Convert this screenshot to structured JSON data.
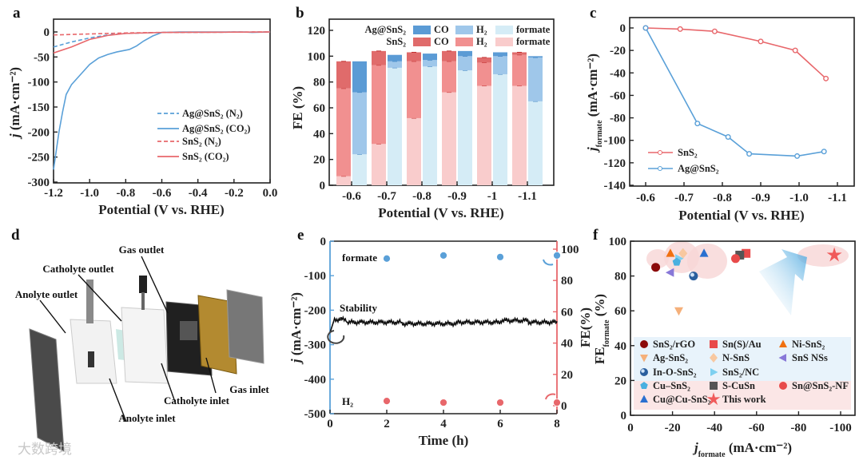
{
  "panels": {
    "a": "a",
    "b": "b",
    "c": "c",
    "d": "d",
    "e": "e",
    "f": "f"
  },
  "watermark": "大数跨境",
  "cell_diagram": {
    "labels": [
      "Gas outlet",
      "Catholyte outlet",
      "Anolyte outlet",
      "Gas inlet",
      "Catholyte inlet",
      "Anolyte inlet"
    ]
  },
  "colors": {
    "sns2": "#e8676b",
    "ag": "#5aa0d8",
    "sns2_formate": "#f9cccc",
    "sns2_h2": "#f19090",
    "sns2_co": "#e06b6b",
    "ag_formate": "#d5ecf6",
    "ag_h2": "#9fc7ea",
    "ag_co": "#5b9bd5"
  },
  "chart_data": [
    {
      "type": "line",
      "panel": "a",
      "xlabel": "Potential (V vs. RHE)",
      "ylabel_symbol": "j",
      "ylabel_unit": " (mA·cm⁻²)",
      "xlim": [
        -1.2,
        0.0
      ],
      "ylim": [
        -300,
        0
      ],
      "x_ticks": [
        "-1.2",
        "-1.0",
        "-0.8",
        "-0.6",
        "-0.4",
        "-0.2",
        "0.0"
      ],
      "y_ticks": [
        "0",
        "-50",
        "-100",
        "-150",
        "-200",
        "-250",
        "-300"
      ],
      "series": [
        {
          "name": "Ag@SnS₂ (N₂)",
          "style": "dashed",
          "color": "#5aa0d8",
          "x": [
            -1.2,
            -1.1,
            -1.0,
            -0.9,
            -0.8,
            -0.6,
            0
          ],
          "y": [
            -30,
            -20,
            -12,
            -6,
            -3,
            -1,
            0
          ]
        },
        {
          "name": "Ag@SnS₂ (CO₂)",
          "style": "solid",
          "color": "#5aa0d8",
          "x": [
            -1.2,
            -1.19,
            -1.17,
            -1.15,
            -1.13,
            -1.1,
            -1.05,
            -1.0,
            -0.95,
            -0.9,
            -0.85,
            -0.78,
            -0.74,
            -0.7,
            -0.65,
            -0.6,
            -0.5,
            -0.15,
            -0.1,
            0
          ],
          "y": [
            -275,
            -250,
            -200,
            -160,
            -125,
            -105,
            -85,
            -65,
            -52,
            -45,
            -40,
            -35,
            -28,
            -18,
            -8,
            -1,
            0,
            0,
            -1,
            0
          ]
        },
        {
          "name": "SnS₂ (N₂)",
          "style": "dashed",
          "color": "#e8676b",
          "x": [
            -1.2,
            -1.0,
            -0.8,
            -0.6,
            0
          ],
          "y": [
            -6,
            -4,
            -2,
            -1,
            0
          ]
        },
        {
          "name": "SnS₂ (CO₂)",
          "style": "solid",
          "color": "#e8676b",
          "x": [
            -1.2,
            -1.1,
            -1.0,
            -0.9,
            -0.8,
            -0.6,
            0
          ],
          "y": [
            -42,
            -30,
            -15,
            -7,
            -3,
            -1,
            0
          ]
        }
      ]
    },
    {
      "type": "bar",
      "panel": "b",
      "stacked": true,
      "xlabel": "Potential (V vs. RHE)",
      "ylabel": "FE (%)",
      "ylim": [
        0,
        120
      ],
      "y_ticks": [
        "0",
        "20",
        "40",
        "60",
        "80",
        "100",
        "120"
      ],
      "categories": [
        "-0.6",
        "-0.7",
        "-0.8",
        "-0.9",
        "-1",
        "-1.1"
      ],
      "legend_groups": [
        "Ag@SnS₂",
        "SnS₂"
      ],
      "legend_products": [
        "CO",
        "H₂",
        "formate"
      ],
      "series": [
        {
          "name": "SnS₂",
          "formate": [
            7,
            32,
            52,
            72,
            77,
            77
          ],
          "H2": [
            68,
            61,
            44,
            24,
            18,
            24
          ],
          "CO": [
            21,
            11,
            7,
            8,
            4,
            2
          ]
        },
        {
          "name": "Ag@SnS₂",
          "formate": [
            24,
            91,
            92,
            89,
            86,
            65
          ],
          "H2": [
            48,
            5,
            5,
            11,
            14,
            34
          ],
          "CO": [
            24,
            5,
            5,
            4,
            3,
            1
          ]
        }
      ]
    },
    {
      "type": "line",
      "panel": "c",
      "xlabel": "Potential (V vs. RHE)",
      "ylabel_symbol": "j",
      "ylabel_sub": "formate",
      "ylabel_unit": " (mA·cm⁻²)",
      "xlim": [
        -0.6,
        -1.1
      ],
      "ylim": [
        -140,
        0
      ],
      "x_ticks": [
        "-0.6",
        "-0.7",
        "-0.8",
        "-0.9",
        "-1.0",
        "-1.1"
      ],
      "y_ticks": [
        "0",
        "-20",
        "-40",
        "-60",
        "-80",
        "-100",
        "-120",
        "-140"
      ],
      "series": [
        {
          "name": "SnS₂",
          "color": "#e8676b",
          "x": [
            -0.6,
            -0.69,
            -0.78,
            -0.9,
            -0.99,
            -1.07
          ],
          "y": [
            0,
            -1,
            -3,
            -12,
            -20,
            -45
          ]
        },
        {
          "name": "Ag@SnS₂",
          "color": "#5aa0d8",
          "x": [
            -0.6,
            -0.735,
            -0.815,
            -0.87,
            -0.995,
            -1.065
          ],
          "y": [
            0,
            -85,
            -97,
            -112,
            -114,
            -110
          ]
        }
      ]
    },
    {
      "type": "line",
      "panel": "e",
      "xlabel": "Time (h)",
      "ylabel_left_symbol": "j",
      "ylabel_left_unit": " (mA·cm⁻²)",
      "ylabel_right": "FE(%)",
      "xlim": [
        0,
        8
      ],
      "ylim_left": [
        -500,
        0
      ],
      "ylim_right": [
        0,
        100
      ],
      "x_ticks": [
        "0",
        "2",
        "4",
        "6",
        "8"
      ],
      "y_ticks_left": [
        "0",
        "-100",
        "-200",
        "-300",
        "-400",
        "-500"
      ],
      "y_ticks_right": [
        "0",
        "20",
        "40",
        "60",
        "80",
        "100"
      ],
      "annotation": "Stability",
      "stability": {
        "name": "j",
        "mean": -235,
        "x_start": 0,
        "x_end": 8,
        "initial": -265
      },
      "fe_series": [
        {
          "name": "formate",
          "color": "#5aa0d8",
          "x": [
            2,
            4,
            6,
            8
          ],
          "y": [
            94,
            96,
            95,
            96
          ]
        },
        {
          "name": "H₂",
          "color": "#e8676b",
          "x": [
            2,
            4,
            6,
            8
          ],
          "y": [
            3,
            2,
            2,
            2
          ]
        }
      ]
    },
    {
      "type": "scatter",
      "panel": "f",
      "xlabel_symbol": "j",
      "xlabel_sub": "formate",
      "xlabel_unit": " (mA·cm⁻²)",
      "ylabel_symbol": "FE",
      "ylabel_sub": "formate",
      "ylabel_unit": " (%)",
      "xlim": [
        0,
        -110
      ],
      "ylim": [
        0,
        100
      ],
      "x_ticks": [
        "0",
        "-20",
        "-40",
        "-60",
        "-80",
        "-100"
      ],
      "y_ticks": [
        "0",
        "20",
        "40",
        "60",
        "80",
        "100"
      ],
      "points": [
        {
          "name": "SnS₂/rGO",
          "marker": "circle",
          "color": "#8b0a0a",
          "x": -12,
          "y": 85
        },
        {
          "name": "Sn(S)/Au",
          "marker": "square",
          "color": "#e84a4a",
          "x": -55,
          "y": 93
        },
        {
          "name": "Ni-SnS₂",
          "marker": "triangle-up",
          "color": "#f07010",
          "x": -19,
          "y": 93
        },
        {
          "name": "Ag-SnS₂",
          "marker": "triangle-down",
          "color": "#f5b07a",
          "x": -23,
          "y": 60
        },
        {
          "name": "N-SnS",
          "marker": "diamond",
          "color": "#f8c8a0",
          "x": -25,
          "y": 93
        },
        {
          "name": "SnS NSs",
          "marker": "triangle-left",
          "color": "#8878d8",
          "x": -19,
          "y": 82
        },
        {
          "name": "In-O-SnS₂",
          "marker": "sphere",
          "color": "#2a5f9e",
          "x": -30,
          "y": 80
        },
        {
          "name": "SnS₂/NC",
          "marker": "triangle-right",
          "color": "#7dd0f0",
          "x": -23,
          "y": 90
        },
        {
          "name": "Cu–SnS₂",
          "marker": "pentagon",
          "color": "#4ab0e0",
          "x": -22,
          "y": 88
        },
        {
          "name": "S-CuSn",
          "marker": "square",
          "color": "#555555",
          "x": -52,
          "y": 92
        },
        {
          "name": "Sn@SnS₂-NF",
          "marker": "circle",
          "color": "#e84a4a",
          "x": -50,
          "y": 90
        },
        {
          "name": "Cu@Cu-SnS₂",
          "marker": "triangle-up",
          "color": "#2a70d0",
          "x": -35,
          "y": 93
        },
        {
          "name": "This work",
          "marker": "star",
          "color": "#f05a5a",
          "x": -97,
          "y": 92
        }
      ]
    }
  ]
}
